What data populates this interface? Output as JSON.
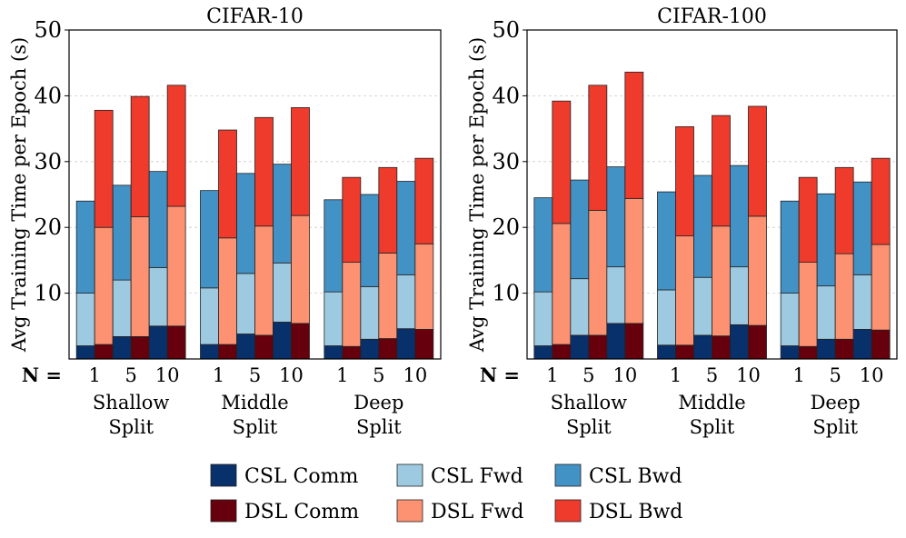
{
  "figure": {
    "n_prefix": "N =",
    "group_labels": [
      [
        "Shallow",
        "Split"
      ],
      [
        "Middle",
        "Split"
      ],
      [
        "Deep",
        "Split"
      ]
    ],
    "legend": [
      {
        "key": "csl_comm",
        "label": "CSL Comm"
      },
      {
        "key": "csl_fwd",
        "label": "CSL Fwd"
      },
      {
        "key": "csl_bwd",
        "label": "CSL Bwd"
      },
      {
        "key": "dsl_comm",
        "label": "DSL Comm"
      },
      {
        "key": "dsl_fwd",
        "label": "DSL Fwd"
      },
      {
        "key": "dsl_bwd",
        "label": "DSL Bwd"
      }
    ],
    "colors": {
      "csl_comm": "#08306b",
      "csl_fwd": "#9ecae1",
      "csl_bwd": "#4292c6",
      "dsl_comm": "#67000d",
      "dsl_fwd": "#fc9272",
      "dsl_bwd": "#ef3b2c"
    }
  },
  "chart_data": [
    {
      "type": "bar",
      "stacked": true,
      "title": "CIFAR-10",
      "ylabel": "Avg Training Time per Epoch (s)",
      "xlabel": "",
      "ylim": [
        0,
        50
      ],
      "yticks": [
        10,
        20,
        30,
        40,
        50
      ],
      "grid": true,
      "groups": [
        "Shallow Split",
        "Middle Split",
        "Deep Split"
      ],
      "n_values": [
        "1",
        "5",
        "10"
      ],
      "stack_order": [
        "comm",
        "fwd",
        "bwd"
      ],
      "csl": [
        [
          [
            2.0,
            8.0,
            14.0
          ],
          [
            3.4,
            8.6,
            14.4
          ],
          [
            5.0,
            8.9,
            14.6
          ]
        ],
        [
          [
            2.2,
            8.6,
            14.8
          ],
          [
            3.8,
            9.2,
            15.2
          ],
          [
            5.6,
            9.0,
            15.0
          ]
        ],
        [
          [
            2.0,
            8.2,
            14.0
          ],
          [
            3.0,
            8.0,
            14.0
          ],
          [
            4.6,
            8.2,
            14.2
          ]
        ]
      ],
      "dsl": [
        [
          [
            2.2,
            17.8,
            17.8
          ],
          [
            3.4,
            18.2,
            18.3
          ],
          [
            5.0,
            18.2,
            18.4
          ]
        ],
        [
          [
            2.2,
            16.2,
            16.4
          ],
          [
            3.6,
            16.6,
            16.5
          ],
          [
            5.4,
            16.4,
            16.4
          ]
        ],
        [
          [
            1.9,
            12.8,
            12.9
          ],
          [
            3.1,
            13.0,
            13.0
          ],
          [
            4.5,
            13.0,
            13.0
          ]
        ]
      ]
    },
    {
      "type": "bar",
      "stacked": true,
      "title": "CIFAR-100",
      "ylabel": "Avg Training Time per Epoch (s)",
      "xlabel": "",
      "ylim": [
        0,
        50
      ],
      "yticks": [
        10,
        20,
        30,
        40,
        50
      ],
      "grid": true,
      "groups": [
        "Shallow Split",
        "Middle Split",
        "Deep Split"
      ],
      "n_values": [
        "1",
        "5",
        "10"
      ],
      "stack_order": [
        "comm",
        "fwd",
        "bwd"
      ],
      "csl": [
        [
          [
            2.0,
            8.2,
            14.3
          ],
          [
            3.6,
            8.6,
            15.0
          ],
          [
            5.4,
            8.6,
            15.2
          ]
        ],
        [
          [
            2.1,
            8.4,
            14.9
          ],
          [
            3.6,
            8.8,
            15.5
          ],
          [
            5.2,
            8.8,
            15.4
          ]
        ],
        [
          [
            2.0,
            8.0,
            14.0
          ],
          [
            3.0,
            8.1,
            14.0
          ],
          [
            4.5,
            8.3,
            14.1
          ]
        ]
      ],
      "dsl": [
        [
          [
            2.2,
            18.4,
            18.6
          ],
          [
            3.6,
            19.0,
            19.0
          ],
          [
            5.4,
            19.0,
            19.2
          ]
        ],
        [
          [
            2.1,
            16.6,
            16.6
          ],
          [
            3.5,
            16.7,
            16.8
          ],
          [
            5.1,
            16.6,
            16.7
          ]
        ],
        [
          [
            1.9,
            12.8,
            12.9
          ],
          [
            3.0,
            13.0,
            13.1
          ],
          [
            4.4,
            13.0,
            13.1
          ]
        ]
      ]
    }
  ]
}
